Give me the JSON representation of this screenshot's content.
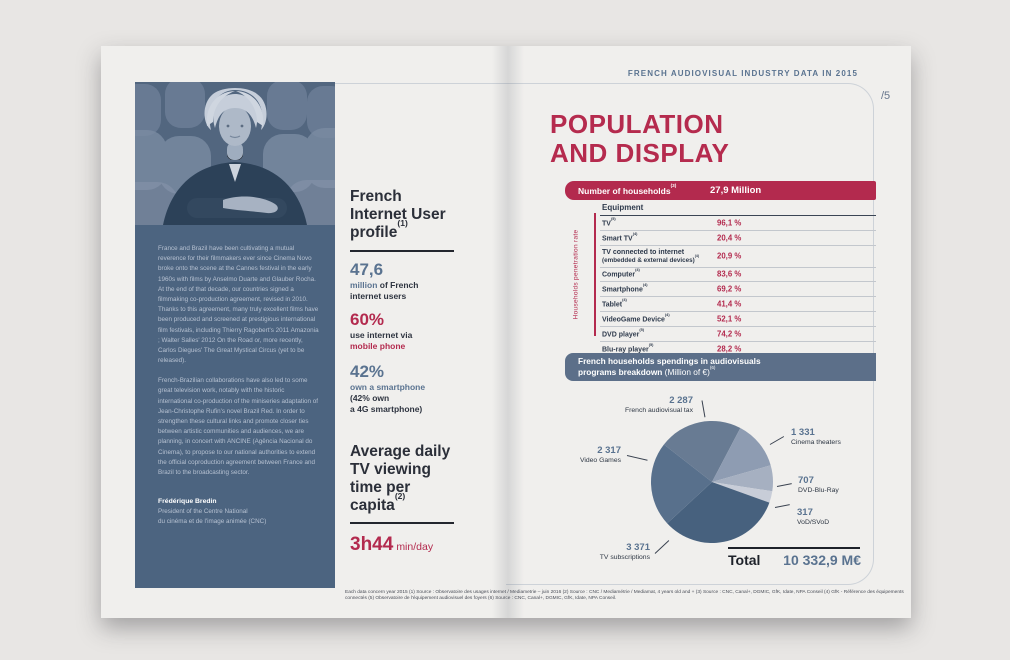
{
  "header": {
    "title": "FRENCH AUDIOVISUAL INDUSTRY DATA IN 2015",
    "page_number": "/5"
  },
  "left": {
    "paragraph1": "France and Brazil have been cultivating a mutual reverence for their filmmakers ever since Cinema Novo broke onto the scene at the Cannes festival in the early 1960s with films by Anselmo Duarte and Glauber Rocha. At the end of that decade, our countries signed a filmmaking co-production agreement, revised in 2010. Thanks to this agreement, many truly excellent films have been produced and screened at prestigious international film festivals, including Thierry Ragobert's 2011 Amazonia ; Walter Salles' 2012 On the Road or, more recently, Carlos Diegues' The Great Mystical Circus (yet to be released).",
    "paragraph2": "French-Brazilian collaborations have also led to some great television work, notably with the historic international co-production of the miniseries adaptation of Jean-Christophe Rufin's novel Brazil Red. In order to strengthen these cultural links and promote closer ties between artistic communities and audiences, we are planning, in concert with ANCINE (Agência Nacional do Cinema), to propose to our national authorities to extend the official coproduction agreement between France and Brazil to the broadcasting sector.",
    "signature_name": "Frédérique Bredin",
    "signature_role1": "President of the Centre National",
    "signature_role2": "du cinéma et de l'image animée (CNC)"
  },
  "profile": {
    "heading": "French\nInternet User\nprofile",
    "heading_sup": "(1)",
    "stat1": {
      "number": "47,6",
      "lead": "million",
      "lead_rest": " of French",
      "line2": "internet users"
    },
    "stat2": {
      "number": "60%",
      "line1": "use internet via",
      "line2": "mobile phone"
    },
    "stat3": {
      "number": "42%",
      "line1": "own a smartphone",
      "line2": "(42% own",
      "line3": "a 4G smartphone)"
    }
  },
  "tv_time": {
    "heading": "Average daily\nTV viewing\ntime per\ncapita",
    "heading_sup": "(2)",
    "value": "3h44",
    "unit": "min/day"
  },
  "population": {
    "title": "POPULATION\nAND DISPLAY",
    "households_label": "Number of households",
    "households_sup": "(3)",
    "households_value": "27,9 Million",
    "axis_label": "Households penetration rate",
    "table": {
      "header": "Equipment",
      "rows": [
        {
          "label": "TV",
          "sup": "(5)",
          "value": "96,1 %"
        },
        {
          "label": "Smart TV",
          "sup": "(4)",
          "value": "20,4 %"
        },
        {
          "label": "TV connected to internet",
          "label2": "(embedded & external devices)",
          "sup": "(4)",
          "value": "20,9 %"
        },
        {
          "label": "Computer",
          "sup": "(4)",
          "value": "83,6 %"
        },
        {
          "label": "Smartphone",
          "sup": "(4)",
          "value": "69,2 %"
        },
        {
          "label": "Tablet",
          "sup": "(4)",
          "value": "41,4 %"
        },
        {
          "label": "VideoGame Device",
          "sup": "(4)",
          "value": "52,1 %"
        },
        {
          "label": "DVD player",
          "sup": "(5)",
          "value": "74,2 %"
        },
        {
          "label": "Blu-ray player",
          "sup": "(5)",
          "value": "28,2 %"
        }
      ]
    }
  },
  "spending": {
    "bar_line1": "French households spendings in audiovisuals",
    "bar_line2_bold": "programs breakdown",
    "bar_line2_rest": " (Million of €)",
    "bar_sup": "(6)",
    "total_label": "Total",
    "total_value": "10 332,9 M€"
  },
  "chart_data": {
    "type": "pie",
    "title": "French households spendings in audiovisuals programs breakdown",
    "unit": "Million of €",
    "total_label": "Total",
    "total_value": "10 332,9 M€",
    "start_angle_deg": -52,
    "legend_position": "around",
    "slices": [
      {
        "label": "French audiovisual tax",
        "value": 2287,
        "display": "2 287",
        "color": "#687b93"
      },
      {
        "label": "Cinema theaters",
        "value": 1331,
        "display": "1 331",
        "color": "#8e9cb2"
      },
      {
        "label": "DVD-Blu-Ray",
        "value": 707,
        "display": "707",
        "color": "#a6b0c1"
      },
      {
        "label": "VoD/SVoD",
        "value": 317,
        "display": "317",
        "color": "#c8cdd8"
      },
      {
        "label": "TV subscriptions",
        "value": 3371,
        "display": "3 371",
        "color": "#47617e"
      },
      {
        "label": "Video Games",
        "value": 2317,
        "display": "2 317",
        "color": "#58708c"
      }
    ]
  },
  "footnote": "Each data concern year 2015 (1) Source : Observatoire des usages internet / Mediametrie – juin 2016 (2) Source : CNC / Mediamétrie / Mediamat, 4 years old and + (3) Source : CNC, Canal+, DGMIC, GfK, Idate, NPA Conseil (4) GfK - Référence des équipements connectés (5) Observatoire de l'équipement audiovisuel des foyers (6) Source : CNC, Canal+, DGMIC, GfK, Idate, NPA Conseil."
}
